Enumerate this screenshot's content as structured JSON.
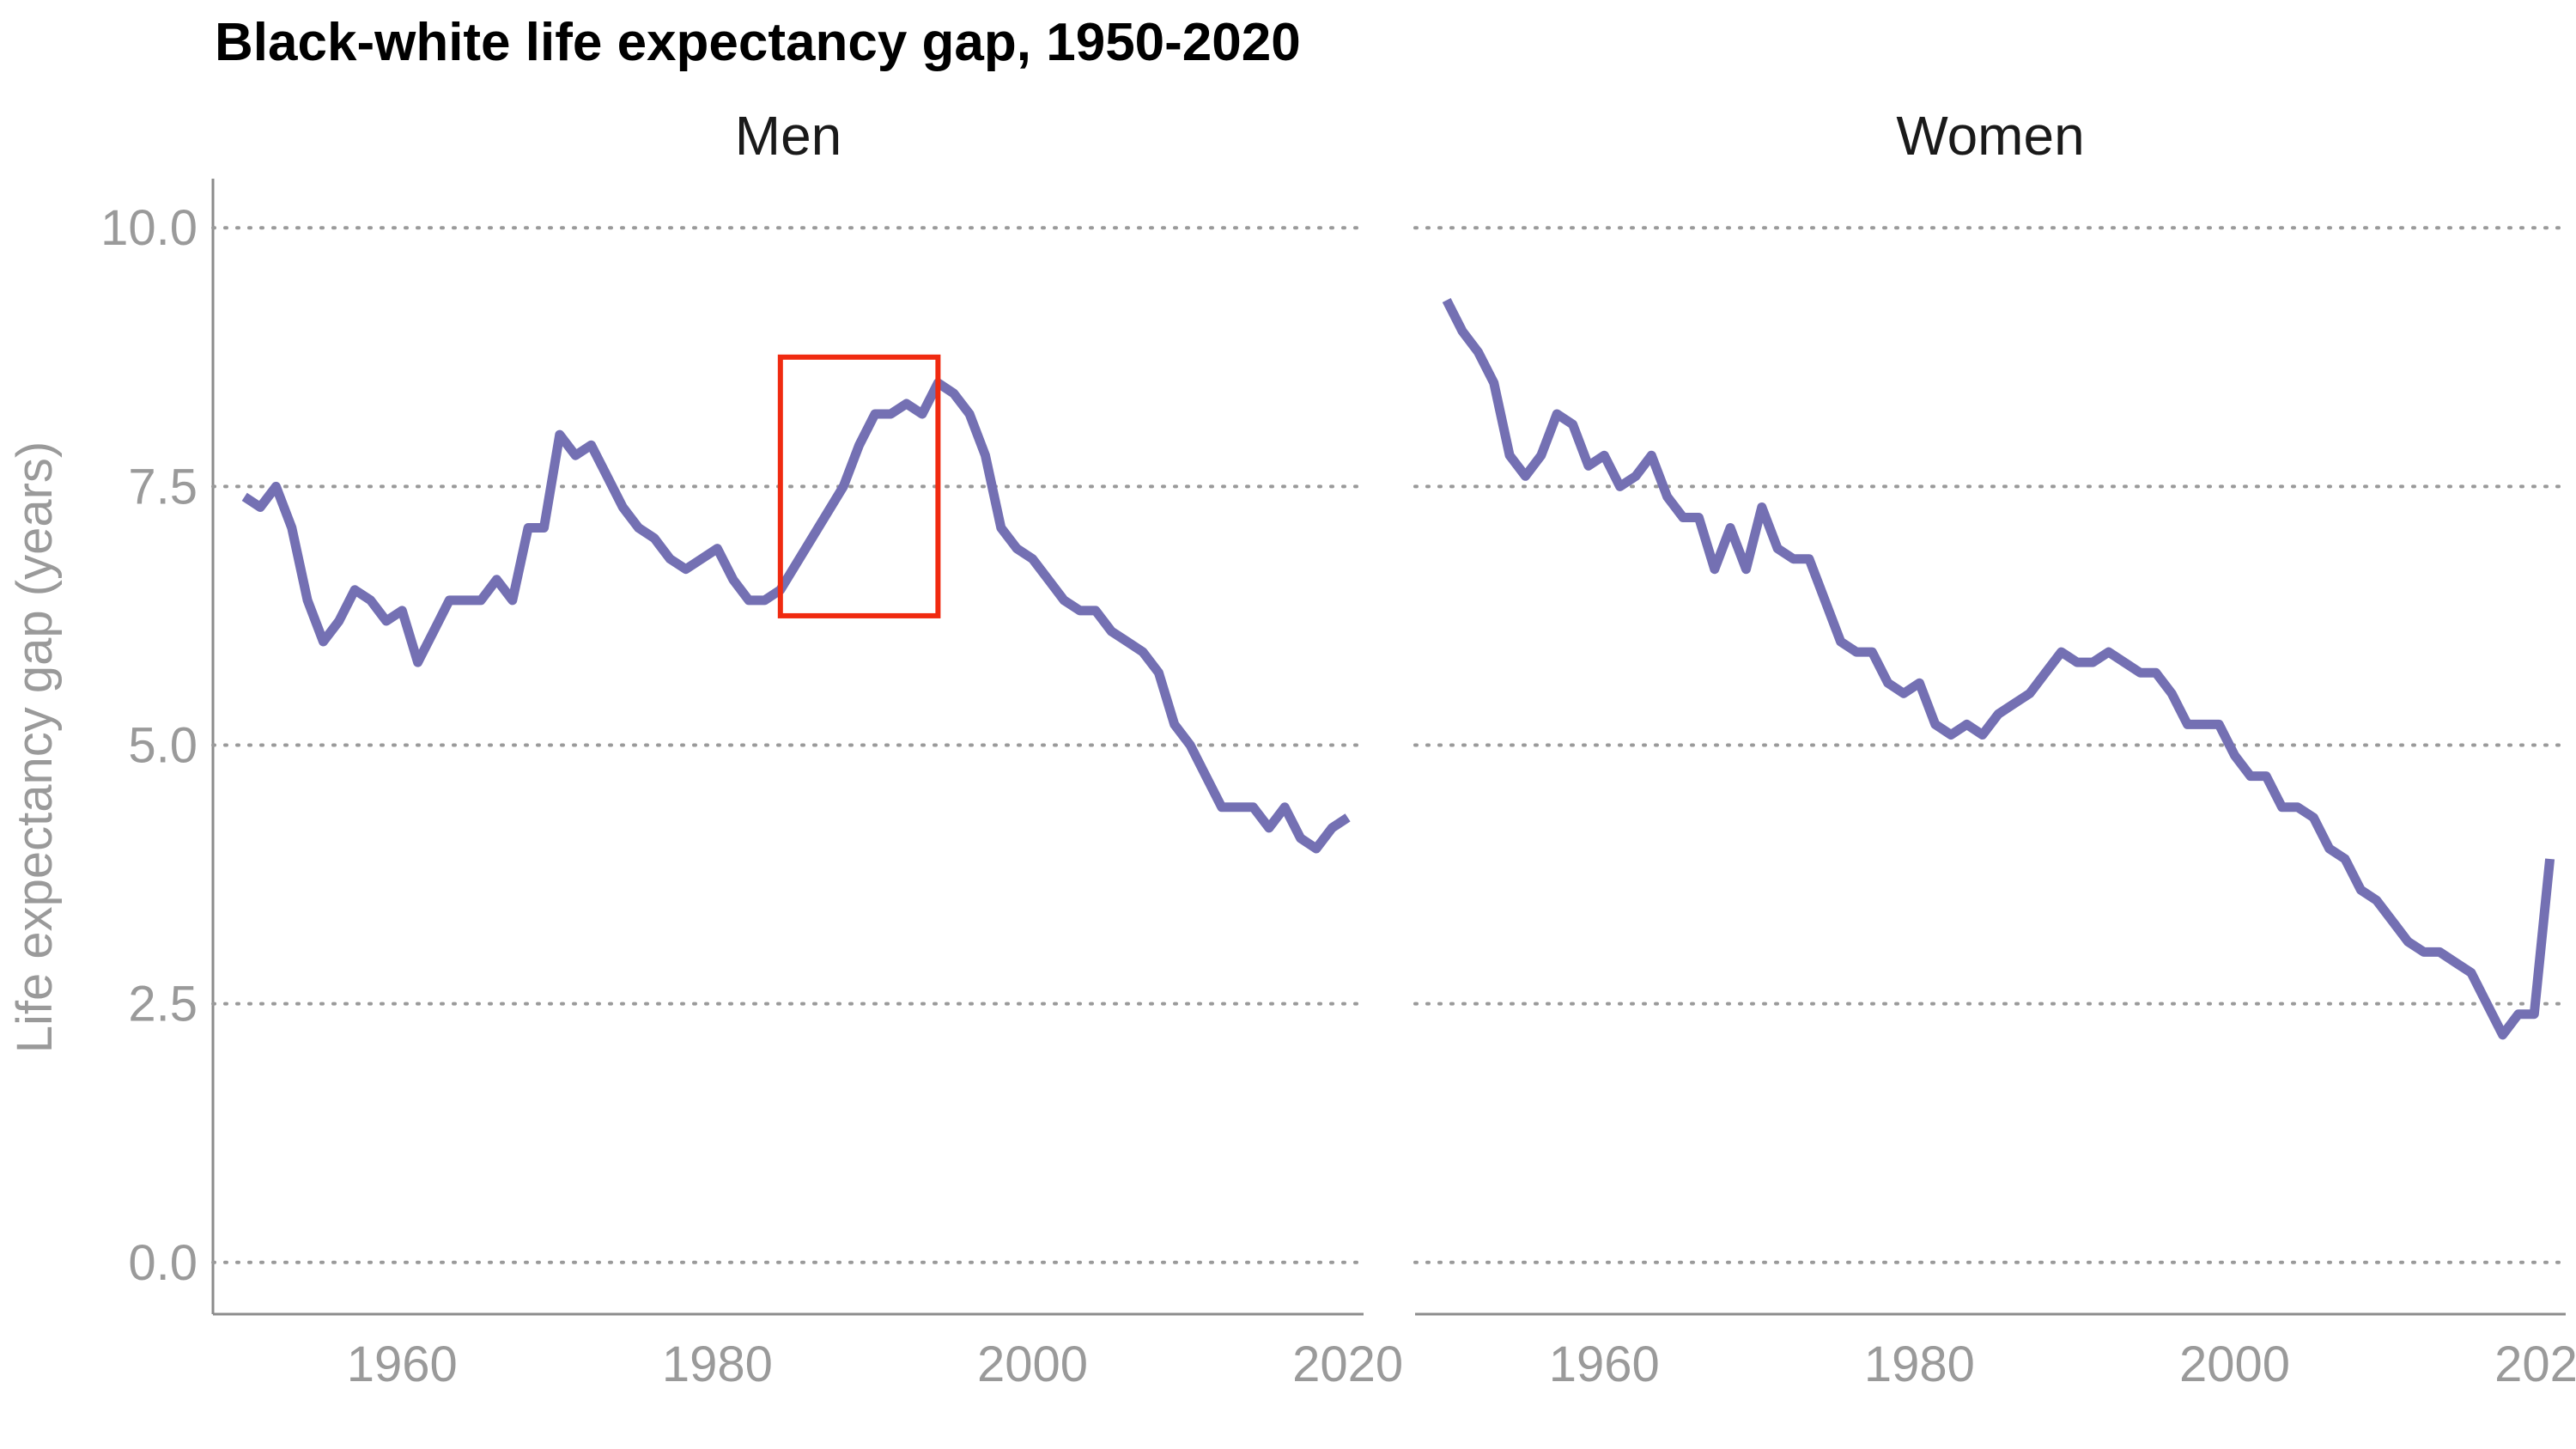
{
  "title": "Black-white life expectancy gap, 1950-2020",
  "ylabel": "Life expectancy gap (years)",
  "colors": {
    "line": "#7470B3",
    "highlight": "#F02A10",
    "grid": "#9a9a9a",
    "axis": "#8c8c8c",
    "tick_text": "#9a9a9a"
  },
  "chart_data": {
    "type": "line",
    "title": "Black-white life expectancy gap, 1950-2020",
    "xlabel": "",
    "ylabel": "Life expectancy gap (years)",
    "xlim": [
      1948,
      2021
    ],
    "ylim": [
      -0.5,
      10.5
    ],
    "x_ticks": [
      1960,
      1980,
      2000,
      2020
    ],
    "y_ticks": [
      0,
      2.5,
      5,
      7.5,
      10
    ],
    "y_tick_labels": [
      "0.0",
      "2.5",
      "5.0",
      "7.5",
      "10.0"
    ],
    "grid": "horizontal dotted",
    "facets": [
      {
        "label": "Men",
        "highlight": {
          "x": [
            1984,
            1994
          ],
          "y": [
            6.25,
            8.75
          ]
        },
        "x": [
          1950,
          1951,
          1952,
          1953,
          1954,
          1955,
          1956,
          1957,
          1958,
          1959,
          1960,
          1961,
          1962,
          1963,
          1964,
          1965,
          1966,
          1967,
          1968,
          1969,
          1970,
          1971,
          1972,
          1973,
          1974,
          1975,
          1976,
          1977,
          1978,
          1979,
          1980,
          1981,
          1982,
          1983,
          1984,
          1986,
          1988,
          1989,
          1990,
          1991,
          1992,
          1993,
          1994,
          1995,
          1996,
          1997,
          1998,
          1999,
          2000,
          2001,
          2002,
          2003,
          2004,
          2005,
          2006,
          2007,
          2008,
          2009,
          2010,
          2011,
          2012,
          2013,
          2014,
          2015,
          2016,
          2017,
          2018,
          2019,
          2020
        ],
        "y": [
          7.4,
          7.3,
          7.5,
          7.1,
          6.4,
          6.0,
          6.2,
          6.5,
          6.4,
          6.2,
          6.3,
          5.8,
          6.1,
          6.4,
          6.4,
          6.4,
          6.6,
          6.4,
          7.1,
          7.1,
          8.0,
          7.8,
          7.9,
          7.6,
          7.3,
          7.1,
          7.0,
          6.8,
          6.7,
          6.8,
          6.9,
          6.6,
          6.4,
          6.4,
          6.5,
          7.0,
          7.5,
          7.9,
          8.2,
          8.2,
          8.3,
          8.2,
          8.5,
          8.4,
          8.2,
          7.8,
          7.1,
          6.9,
          6.8,
          6.6,
          6.4,
          6.3,
          6.3,
          6.1,
          6.0,
          5.9,
          5.7,
          5.2,
          5.0,
          4.7,
          4.4,
          4.4,
          4.4,
          4.2,
          4.4,
          4.1,
          4.0,
          4.2,
          4.3
        ]
      },
      {
        "label": "Women",
        "x": [
          1950,
          1951,
          1952,
          1953,
          1954,
          1955,
          1956,
          1957,
          1958,
          1959,
          1960,
          1961,
          1962,
          1963,
          1964,
          1965,
          1966,
          1967,
          1968,
          1969,
          1970,
          1971,
          1972,
          1973,
          1974,
          1975,
          1976,
          1977,
          1978,
          1979,
          1980,
          1981,
          1982,
          1983,
          1984,
          1985,
          1986,
          1987,
          1988,
          1989,
          1990,
          1991,
          1992,
          1993,
          1994,
          1995,
          1996,
          1997,
          1998,
          1999,
          2000,
          2001,
          2002,
          2003,
          2004,
          2005,
          2006,
          2007,
          2008,
          2009,
          2010,
          2011,
          2012,
          2013,
          2014,
          2015,
          2016,
          2017,
          2018,
          2019,
          2020
        ],
        "y": [
          9.3,
          9.0,
          8.8,
          8.5,
          7.8,
          7.6,
          7.8,
          8.2,
          8.1,
          7.7,
          7.8,
          7.5,
          7.6,
          7.8,
          7.4,
          7.2,
          7.2,
          6.7,
          7.1,
          6.7,
          7.3,
          6.9,
          6.8,
          6.8,
          6.4,
          6.0,
          5.9,
          5.9,
          5.6,
          5.5,
          5.6,
          5.2,
          5.1,
          5.2,
          5.1,
          5.3,
          5.4,
          5.5,
          5.7,
          5.9,
          5.8,
          5.8,
          5.9,
          5.8,
          5.7,
          5.7,
          5.5,
          5.2,
          5.2,
          5.2,
          4.9,
          4.7,
          4.7,
          4.4,
          4.4,
          4.3,
          4.0,
          3.9,
          3.6,
          3.5,
          3.3,
          3.1,
          3.0,
          3.0,
          2.9,
          2.8,
          2.5,
          2.2,
          2.4,
          2.4,
          3.9
        ]
      }
    ]
  }
}
